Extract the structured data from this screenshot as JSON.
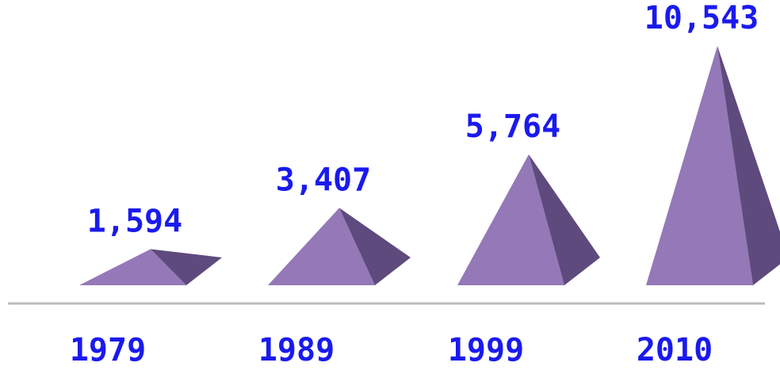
{
  "chart_data": {
    "type": "pyramid",
    "categories": [
      "1979",
      "1989",
      "1999",
      "2010"
    ],
    "values": [
      1594,
      3407,
      5764,
      10543
    ],
    "value_labels": [
      "1,594",
      "3,407",
      "5,764",
      "10,543"
    ],
    "color": "#9478b8"
  }
}
